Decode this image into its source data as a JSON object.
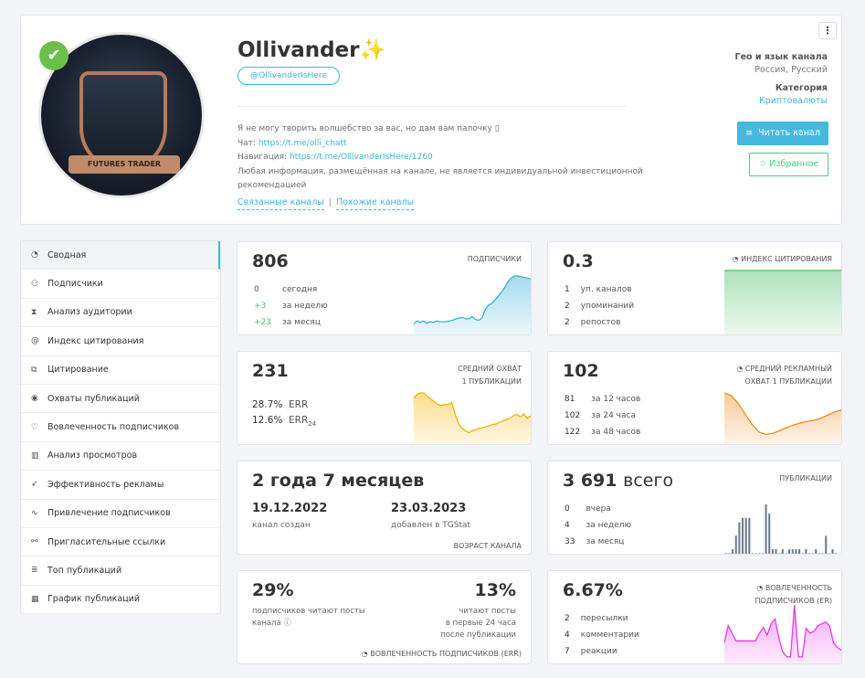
{
  "header": {
    "title": "Ollivander",
    "title_emoji": "✨",
    "handle": "@OllivanderIsHere",
    "description": [
      "Я не могу творить волшебство за вас, но дам вам палочку ▯"
    ],
    "chat_label": "Чат:",
    "chat_link": "https://t.me/olli_chatt",
    "nav_label": "Навигация:",
    "nav_link": "https://t.me/OllivanderIsHere/1260",
    "disclaimer": "Любая информация, размещённая на канале, не является индивидуальной инвестиционной рекомендацией",
    "related": "Связанные каналы",
    "similar": "Похожие каналы",
    "geo_label": "Гео и язык канала",
    "geo_value": "Россия, Русский",
    "category_label": "Категория",
    "category_value": "Криптовалюты",
    "read_button": "Читать канал",
    "favorite_button": "Избранное",
    "menu_icon": "kebab-icon",
    "avatar_text": "FUTURES TRADER",
    "verified": true
  },
  "sidebar": {
    "items": [
      {
        "label": "Сводная",
        "icon": "dashboard-icon",
        "active": true
      },
      {
        "label": "Подписчики",
        "icon": "users-icon"
      },
      {
        "label": "Анализ аудитории",
        "icon": "hourglass-icon"
      },
      {
        "label": "Индекс цитирования",
        "icon": "at-icon"
      },
      {
        "label": "Цитирование",
        "icon": "copy-icon"
      },
      {
        "label": "Охваты публикаций",
        "icon": "eye-icon"
      },
      {
        "label": "Вовлеченность подписчиков",
        "icon": "heart-icon"
      },
      {
        "label": "Анализ просмотров",
        "icon": "bar-chart-icon"
      },
      {
        "label": "Эффективность рекламы",
        "icon": "rocket-icon"
      },
      {
        "label": "Привлечение подписчиков",
        "icon": "trend-icon"
      },
      {
        "label": "Пригласительные ссылки",
        "icon": "link-icon"
      },
      {
        "label": "Топ публикаций",
        "icon": "list-icon"
      },
      {
        "label": "График публикаций",
        "icon": "calendar-icon"
      }
    ]
  },
  "cards": {
    "subscribers": {
      "value": "806",
      "label": "Подписчики",
      "rows": [
        [
          "0",
          "сегодня"
        ],
        [
          "+3",
          "за неделю"
        ],
        [
          "+23",
          "за месяц"
        ]
      ],
      "color": "#3ab0d6",
      "spark": [
        12,
        16,
        14,
        16,
        13,
        15,
        14,
        16,
        15,
        15,
        15,
        16,
        17,
        19,
        20,
        21,
        19,
        19,
        22,
        18,
        17,
        20,
        32,
        38,
        40,
        45,
        50,
        56,
        62,
        70,
        75,
        78,
        78,
        77,
        76,
        75,
        74
      ]
    },
    "citation": {
      "value": "0.3",
      "label": "Индекс цитирования",
      "rows": [
        [
          "1",
          "уп. каналов"
        ],
        [
          "2",
          "упоминаний"
        ],
        [
          "2",
          "репостов"
        ]
      ],
      "color": "#4cbf6a",
      "spark": [
        1,
        1
      ]
    },
    "reach": {
      "value": "231",
      "label1": "Средний охват",
      "label2": "1 публикации",
      "err": "28.7%",
      "err_label": "ERR",
      "err24": "12.6%",
      "err24_label": "ERR",
      "err24_sub": "24",
      "color": "#f5b400",
      "spark": [
        70,
        76,
        78,
        78,
        72,
        68,
        64,
        60,
        58,
        60,
        59,
        63,
        45,
        30,
        22,
        18,
        15,
        18,
        20,
        22,
        23,
        25,
        26,
        28,
        29,
        32,
        34,
        36,
        38,
        42,
        44,
        40,
        45,
        38,
        42
      ]
    },
    "ad_reach": {
      "value": "102",
      "label1": "Средний рекламный",
      "label2": "охват 1 публикации",
      "rows": [
        [
          "81",
          "за 12 часов"
        ],
        [
          "102",
          "за 24 часа"
        ],
        [
          "122",
          "за 48 часов"
        ]
      ],
      "color": "#f28a1e",
      "spark": [
        95,
        90,
        75,
        55,
        35,
        20,
        15,
        17,
        22,
        28,
        33,
        37,
        40,
        42,
        46,
        52,
        58,
        62
      ]
    },
    "age": {
      "value": "2 года 7 месяцев",
      "created": "19.12.2022",
      "created_label": "канал создан",
      "added": "23.03.2023",
      "added_label": "добавлен в TGStat",
      "label": "Возраст канала"
    },
    "posts": {
      "value": "3 691",
      "value_suffix": "всего",
      "label": "Публикации",
      "rows": [
        [
          "0",
          "вчера"
        ],
        [
          "4",
          "за неделю"
        ],
        [
          "33",
          "за месяц"
        ]
      ],
      "color": "#6b7b8c",
      "bars": [
        0,
        0,
        1,
        4,
        7,
        8,
        8,
        8,
        0,
        0,
        0,
        0,
        11,
        9,
        1,
        1,
        0,
        1,
        0,
        1,
        1,
        1,
        1,
        0,
        1,
        0,
        0,
        1,
        0,
        0,
        4,
        0,
        1,
        0
      ]
    },
    "err": {
      "v1": "29%",
      "t1": "подписчиков читают посты канала",
      "v2": "13%",
      "t2a": "читают посты",
      "t2b": "в первые 24 часа",
      "t2c": "после публикации",
      "label": "Вовлеченность подписчиков (ERR)"
    },
    "er": {
      "value": "6.67%",
      "label1": "Вовлеченность",
      "label2": "подписчиков (ER)",
      "rows": [
        [
          "2",
          "пересылки"
        ],
        [
          "4",
          "комментарии"
        ],
        [
          "7",
          "реакции"
        ]
      ],
      "color": "#e83ae8",
      "spark": [
        20,
        38,
        30,
        22,
        22,
        22,
        22,
        22,
        22,
        30,
        36,
        28,
        40,
        45,
        25,
        10,
        5,
        5,
        60,
        5,
        5,
        35,
        30,
        32,
        38,
        40,
        42,
        38,
        20,
        15,
        12
      ]
    }
  }
}
